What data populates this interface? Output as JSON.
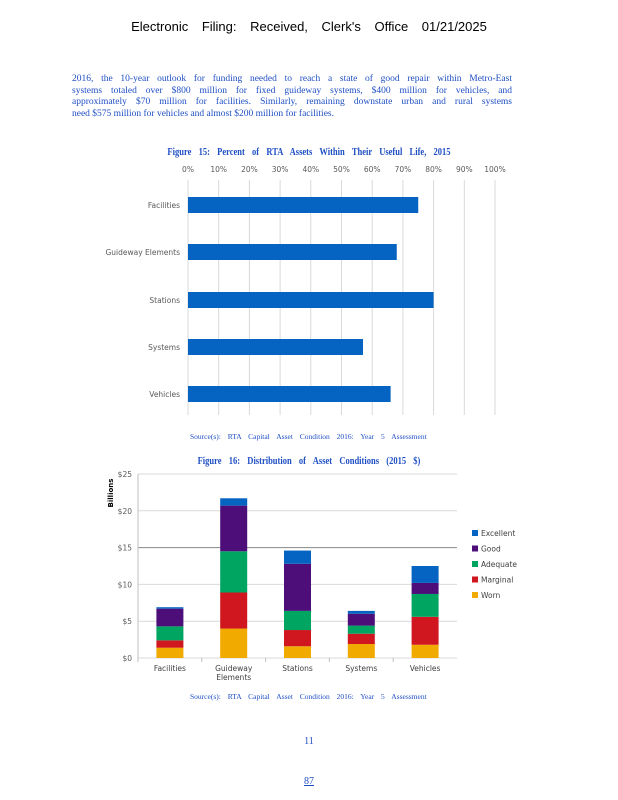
{
  "header": "Electronic Filing: Received, Clerk's Office 01/21/2025",
  "paragraph_lines": [
    "2016, the 10-year outlook for funding needed to reach a state of good repair within Metro-East",
    "systems totaled over $800 million for fixed guideway systems, $400 million for vehicles, and",
    "approximately $70 million for facilities. Similarly, remaining downstate urban and rural systems",
    "need $575 million for vehicles and almost $200 million for facilities."
  ],
  "colors": {
    "text_blue": "#1f4fc4",
    "bar_blue": "#0563c1",
    "excellent": "#0563c1",
    "good": "#4e0e7a",
    "adequate": "#00a562",
    "marginal": "#d0161e",
    "worn": "#f0aa00"
  },
  "chart_data": [
    {
      "type": "bar",
      "orientation": "horizontal",
      "title": "Figure 15: Percent of RTA Assets Within Their Useful Life, 2015",
      "categories": [
        "Facilities",
        "Guideway Elements",
        "Stations",
        "Systems",
        "Vehicles"
      ],
      "values": [
        75,
        68,
        80,
        57,
        66
      ],
      "xlim": [
        0,
        100
      ],
      "tick_labels": [
        "0%",
        "10%",
        "20%",
        "30%",
        "40%",
        "50%",
        "60%",
        "70%",
        "80%",
        "90%",
        "100%"
      ],
      "source": "Source(s): RTA Capital Asset Condition 2016: Year 5 Assessment"
    },
    {
      "type": "bar",
      "stacked": true,
      "title": "Figure 16: Distribution of Asset Conditions (2015 $)",
      "ylabel": "Billions",
      "ylim": [
        0,
        25
      ],
      "tick_labels": [
        "$0",
        "$5",
        "$10",
        "$15",
        "$20",
        "$25"
      ],
      "categories": [
        "Facilities",
        "Guideway Elements",
        "Stations",
        "Systems",
        "Vehicles"
      ],
      "series": [
        {
          "name": "Worn",
          "values": [
            1.4,
            4.0,
            1.6,
            1.9,
            1.8
          ]
        },
        {
          "name": "Marginal",
          "values": [
            1.0,
            4.9,
            2.2,
            1.4,
            3.8
          ]
        },
        {
          "name": "Adequate",
          "values": [
            1.9,
            5.6,
            2.6,
            1.1,
            3.1
          ]
        },
        {
          "name": "Good",
          "values": [
            2.4,
            6.2,
            6.4,
            1.6,
            1.5
          ]
        },
        {
          "name": "Excellent",
          "values": [
            0.2,
            1.0,
            1.8,
            0.4,
            2.3
          ]
        }
      ],
      "legend": [
        "Excellent",
        "Good",
        "Adequate",
        "Marginal",
        "Worn"
      ],
      "legend_position": "right",
      "source": "Source(s): RTA Capital Asset Condition 2016: Year 5 Assessment"
    }
  ],
  "page_number": "11",
  "footer_number": "87"
}
